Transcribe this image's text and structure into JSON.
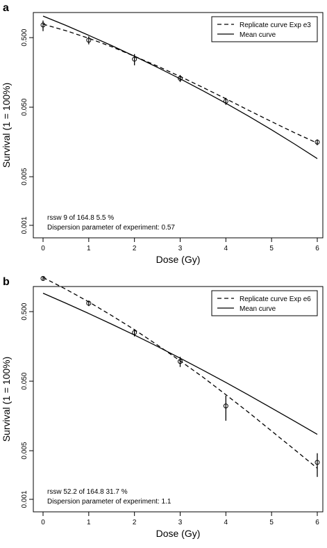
{
  "chart_data": [
    {
      "type": "line",
      "panel_label": "a",
      "xlabel": "Dose (Gy)",
      "ylabel": "Survival (1 = 100%)",
      "xlim": [
        0,
        6
      ],
      "ylim": [
        0.001,
        1.0
      ],
      "y_scale": "log",
      "x_ticks": [
        0,
        1,
        2,
        3,
        4,
        5,
        6
      ],
      "y_ticks": [
        0.001,
        0.005,
        0.05,
        0.5
      ],
      "y_tick_labels": [
        "0.001",
        "0.005",
        "0.050",
        "0.500"
      ],
      "legend": {
        "placement": "top-right",
        "entries": [
          {
            "label": "Replicate curve Exp e3",
            "style": "dashed"
          },
          {
            "label": "Mean curve",
            "style": "solid"
          }
        ]
      },
      "annotations": [
        "rssw 9 of 164.8   5.5 %",
        "Dispersion parameter of experiment: 0.57"
      ],
      "series": [
        {
          "name": "Replicate curve Exp e3",
          "style": "dashed",
          "x": [
            0,
            0.5,
            1,
            1.5,
            2,
            2.5,
            3,
            3.5,
            4,
            4.5,
            5,
            5.5,
            6
          ],
          "y": [
            0.78,
            0.63,
            0.49,
            0.37,
            0.27,
            0.195,
            0.138,
            0.096,
            0.066,
            0.045,
            0.031,
            0.0215,
            0.0152
          ]
        },
        {
          "name": "Mean curve",
          "style": "solid",
          "x": [
            0,
            0.5,
            1,
            1.5,
            2,
            2.5,
            3,
            3.5,
            4,
            4.5,
            5,
            5.5,
            6
          ],
          "y": [
            1.02,
            0.75,
            0.54,
            0.385,
            0.27,
            0.187,
            0.128,
            0.086,
            0.057,
            0.037,
            0.0236,
            0.0148,
            0.0091
          ]
        }
      ],
      "points": {
        "x": [
          0,
          1,
          2,
          3,
          4,
          6
        ],
        "y": [
          0.76,
          0.46,
          0.245,
          0.13,
          0.061,
          0.0157
        ],
        "err_low": [
          0.62,
          0.4,
          0.2,
          0.115,
          0.054,
          0.0142
        ],
        "err_high": [
          0.88,
          0.52,
          0.29,
          0.145,
          0.068,
          0.0172
        ]
      }
    },
    {
      "type": "line",
      "panel_label": "b",
      "xlabel": "Dose (Gy)",
      "ylabel": "Survival (1 = 100%)",
      "xlim": [
        0,
        6
      ],
      "ylim": [
        0.001,
        1.0
      ],
      "y_scale": "log",
      "x_ticks": [
        0,
        1,
        2,
        3,
        4,
        5,
        6
      ],
      "y_ticks": [
        0.001,
        0.005,
        0.05,
        0.5
      ],
      "y_tick_labels": [
        "0.001",
        "0.005",
        "0.050",
        "0.500"
      ],
      "legend": {
        "placement": "top-right",
        "entries": [
          {
            "label": "Replicate curve Exp e6",
            "style": "dashed"
          },
          {
            "label": "Mean curve",
            "style": "solid"
          }
        ]
      },
      "annotations": [
        "rssw 52.2 of 164.8   31.7 %",
        "Dispersion parameter of experiment: 1.1"
      ],
      "series": [
        {
          "name": "Replicate curve Exp e6",
          "style": "dashed",
          "x": [
            0,
            0.5,
            1,
            1.5,
            2,
            2.5,
            3,
            3.5,
            4,
            4.5,
            5,
            5.5,
            6
          ],
          "y": [
            1.55,
            1.05,
            0.69,
            0.44,
            0.275,
            0.166,
            0.098,
            0.057,
            0.032,
            0.0177,
            0.0096,
            0.0052,
            0.0028
          ]
        },
        {
          "name": "Mean curve",
          "style": "solid",
          "x": [
            0,
            0.5,
            1,
            1.5,
            2,
            2.5,
            3,
            3.5,
            4,
            4.5,
            5,
            5.5,
            6
          ],
          "y": [
            0.92,
            0.66,
            0.47,
            0.33,
            0.23,
            0.158,
            0.107,
            0.072,
            0.048,
            0.0315,
            0.0205,
            0.0133,
            0.0086
          ]
        }
      ],
      "points": {
        "x": [
          0,
          1,
          2,
          3,
          4,
          6
        ],
        "y": [
          1.5,
          0.66,
          0.25,
          0.096,
          0.022,
          0.0034
        ],
        "err_low": [
          1.4,
          0.6,
          0.22,
          0.08,
          0.0135,
          0.0021
        ],
        "err_high": [
          1.6,
          0.72,
          0.28,
          0.112,
          0.031,
          0.0046
        ]
      }
    }
  ]
}
